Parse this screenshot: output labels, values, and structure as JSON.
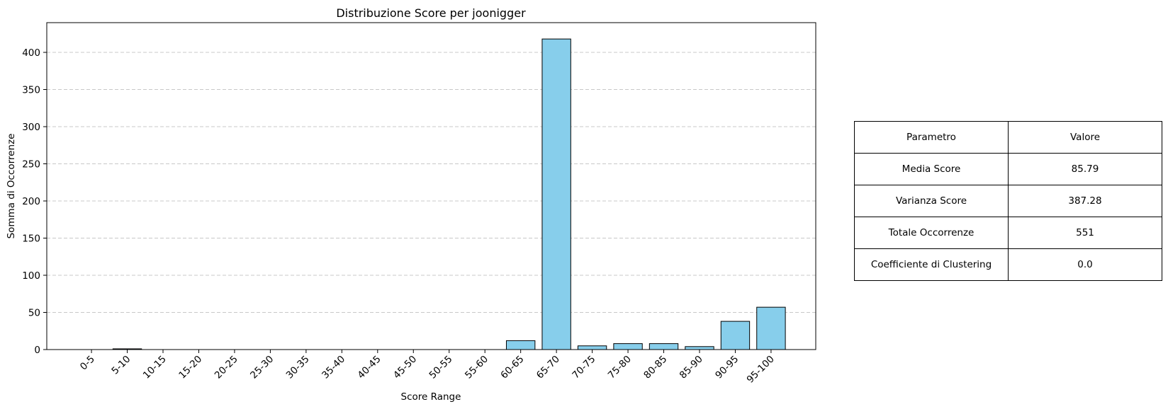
{
  "chart_data": {
    "type": "bar",
    "title": "Distribuzione Score per joonigger",
    "xlabel": "Score Range",
    "ylabel": "Somma di Occorrenze",
    "categories": [
      "0-5",
      "5-10",
      "10-15",
      "15-20",
      "20-25",
      "25-30",
      "30-35",
      "35-40",
      "40-45",
      "45-50",
      "50-55",
      "55-60",
      "60-65",
      "65-70",
      "70-75",
      "75-80",
      "80-85",
      "85-90",
      "90-95",
      "95-100"
    ],
    "values": [
      0,
      1,
      0,
      0,
      0,
      0,
      0,
      0,
      0,
      0,
      0,
      0,
      12,
      418,
      5,
      8,
      8,
      4,
      38,
      57
    ],
    "ylim": [
      0,
      440
    ],
    "yticks": [
      0,
      50,
      100,
      150,
      200,
      250,
      300,
      350,
      400
    ],
    "grid": "y-dashed",
    "bar_color": "#87ceeb",
    "edge_color": "#000000",
    "grid_color": "#c8c8c8"
  },
  "table": {
    "header": [
      "Parametro",
      "Valore"
    ],
    "rows": [
      [
        "Media Score",
        "85.79"
      ],
      [
        "Varianza Score",
        "387.28"
      ],
      [
        "Totale Occorrenze",
        "551"
      ],
      [
        "Coefficiente di Clustering",
        "0.0"
      ]
    ]
  }
}
